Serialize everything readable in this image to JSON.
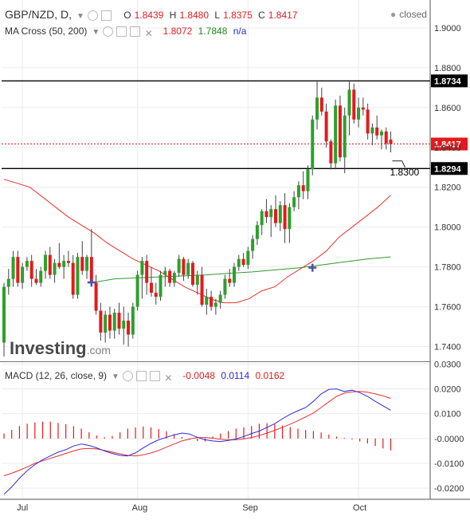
{
  "header": {
    "symbol": "GBP/NZD, D,",
    "open_label": "O",
    "open": "1.8439",
    "high_label": "H",
    "high": "1.8480",
    "low_label": "L",
    "low": "1.8375",
    "close_label": "C",
    "close": "1.8417",
    "status": "closed"
  },
  "ma_legend": {
    "label": "MA Cross (50, 200)",
    "ma50": "1.8072",
    "ma200": "1.7848",
    "extra": "n/a"
  },
  "macd_legend": {
    "label": "MACD (12, 26, close, 9)",
    "hist": "-0.0048",
    "macd": "0.0114",
    "signal": "0.0162"
  },
  "watermark": {
    "brand": "Investing",
    "suffix": ".com"
  },
  "colors": {
    "up": "#2ca02c",
    "down": "#e31a1c",
    "ma50": "#e83030",
    "ma200": "#2e9a2e",
    "macd": "#2b2bd6",
    "signal": "#e83030",
    "hist": "#e31a1c",
    "resistance": "#000000",
    "price_line": "#e31a1c",
    "cross_marker": "#5050b0"
  },
  "chart_data": [
    {
      "type": "candlestick",
      "y_ticks": [
        "1.9000",
        "1.8800",
        "1.8600",
        "1.8400",
        "1.8200",
        "1.8000",
        "1.7800",
        "1.7600",
        "1.7400"
      ],
      "x_ticks": [
        "Jul",
        "Aug",
        "Sep",
        "Oct"
      ],
      "ylim": [
        1.733,
        1.914
      ],
      "levels": [
        {
          "label": "1.8734",
          "value": 1.8734,
          "color": "#000000"
        },
        {
          "label": "1.8294",
          "value": 1.8294,
          "color": "#000000"
        },
        {
          "label": "1.8417",
          "value": 1.8417,
          "color": "#e31a1c"
        }
      ],
      "annotation": {
        "text": "1.8300",
        "value": 1.83
      },
      "candles": [
        {
          "o": 1.742,
          "h": 1.772,
          "l": 1.735,
          "c": 1.77
        },
        {
          "o": 1.77,
          "h": 1.779,
          "l": 1.766,
          "c": 1.774
        },
        {
          "o": 1.774,
          "h": 1.788,
          "l": 1.77,
          "c": 1.785
        },
        {
          "o": 1.785,
          "h": 1.788,
          "l": 1.77,
          "c": 1.772
        },
        {
          "o": 1.772,
          "h": 1.782,
          "l": 1.769,
          "c": 1.78
        },
        {
          "o": 1.78,
          "h": 1.785,
          "l": 1.778,
          "c": 1.783
        },
        {
          "o": 1.783,
          "h": 1.786,
          "l": 1.77,
          "c": 1.774
        },
        {
          "o": 1.774,
          "h": 1.779,
          "l": 1.771,
          "c": 1.772
        },
        {
          "o": 1.772,
          "h": 1.78,
          "l": 1.77,
          "c": 1.778
        },
        {
          "o": 1.778,
          "h": 1.788,
          "l": 1.774,
          "c": 1.786
        },
        {
          "o": 1.786,
          "h": 1.79,
          "l": 1.774,
          "c": 1.776
        },
        {
          "o": 1.776,
          "h": 1.784,
          "l": 1.772,
          "c": 1.782
        },
        {
          "o": 1.782,
          "h": 1.792,
          "l": 1.779,
          "c": 1.78
        },
        {
          "o": 1.78,
          "h": 1.786,
          "l": 1.774,
          "c": 1.783
        },
        {
          "o": 1.783,
          "h": 1.788,
          "l": 1.78,
          "c": 1.782
        },
        {
          "o": 1.782,
          "h": 1.786,
          "l": 1.764,
          "c": 1.766
        },
        {
          "o": 1.766,
          "h": 1.787,
          "l": 1.764,
          "c": 1.785
        },
        {
          "o": 1.785,
          "h": 1.793,
          "l": 1.776,
          "c": 1.778
        },
        {
          "o": 1.778,
          "h": 1.786,
          "l": 1.774,
          "c": 1.785
        },
        {
          "o": 1.785,
          "h": 1.799,
          "l": 1.77,
          "c": 1.772
        },
        {
          "o": 1.772,
          "h": 1.776,
          "l": 1.756,
          "c": 1.758
        },
        {
          "o": 1.758,
          "h": 1.762,
          "l": 1.743,
          "c": 1.747
        },
        {
          "o": 1.747,
          "h": 1.758,
          "l": 1.742,
          "c": 1.756
        },
        {
          "o": 1.756,
          "h": 1.76,
          "l": 1.744,
          "c": 1.748
        },
        {
          "o": 1.748,
          "h": 1.759,
          "l": 1.744,
          "c": 1.757
        },
        {
          "o": 1.757,
          "h": 1.762,
          "l": 1.746,
          "c": 1.749
        },
        {
          "o": 1.749,
          "h": 1.76,
          "l": 1.741,
          "c": 1.753
        },
        {
          "o": 1.753,
          "h": 1.757,
          "l": 1.74,
          "c": 1.746
        },
        {
          "o": 1.746,
          "h": 1.762,
          "l": 1.744,
          "c": 1.76
        },
        {
          "o": 1.76,
          "h": 1.778,
          "l": 1.758,
          "c": 1.776
        },
        {
          "o": 1.776,
          "h": 1.785,
          "l": 1.764,
          "c": 1.783
        },
        {
          "o": 1.783,
          "h": 1.786,
          "l": 1.766,
          "c": 1.772
        },
        {
          "o": 1.772,
          "h": 1.78,
          "l": 1.765,
          "c": 1.767
        },
        {
          "o": 1.767,
          "h": 1.772,
          "l": 1.761,
          "c": 1.765
        },
        {
          "o": 1.765,
          "h": 1.778,
          "l": 1.763,
          "c": 1.776
        },
        {
          "o": 1.776,
          "h": 1.78,
          "l": 1.77,
          "c": 1.778
        },
        {
          "o": 1.778,
          "h": 1.779,
          "l": 1.77,
          "c": 1.772
        },
        {
          "o": 1.772,
          "h": 1.778,
          "l": 1.77,
          "c": 1.777
        },
        {
          "o": 1.777,
          "h": 1.786,
          "l": 1.775,
          "c": 1.784
        },
        {
          "o": 1.784,
          "h": 1.785,
          "l": 1.773,
          "c": 1.776
        },
        {
          "o": 1.776,
          "h": 1.784,
          "l": 1.774,
          "c": 1.782
        },
        {
          "o": 1.782,
          "h": 1.783,
          "l": 1.77,
          "c": 1.771
        },
        {
          "o": 1.771,
          "h": 1.778,
          "l": 1.766,
          "c": 1.776
        },
        {
          "o": 1.776,
          "h": 1.78,
          "l": 1.76,
          "c": 1.761
        },
        {
          "o": 1.761,
          "h": 1.769,
          "l": 1.756,
          "c": 1.765
        },
        {
          "o": 1.765,
          "h": 1.768,
          "l": 1.758,
          "c": 1.76
        },
        {
          "o": 1.76,
          "h": 1.764,
          "l": 1.756,
          "c": 1.762
        },
        {
          "o": 1.762,
          "h": 1.768,
          "l": 1.759,
          "c": 1.766
        },
        {
          "o": 1.766,
          "h": 1.776,
          "l": 1.764,
          "c": 1.774
        },
        {
          "o": 1.774,
          "h": 1.779,
          "l": 1.77,
          "c": 1.772
        },
        {
          "o": 1.772,
          "h": 1.782,
          "l": 1.77,
          "c": 1.78
        },
        {
          "o": 1.78,
          "h": 1.786,
          "l": 1.778,
          "c": 1.784
        },
        {
          "o": 1.784,
          "h": 1.787,
          "l": 1.78,
          "c": 1.781
        },
        {
          "o": 1.781,
          "h": 1.79,
          "l": 1.779,
          "c": 1.788
        },
        {
          "o": 1.788,
          "h": 1.796,
          "l": 1.784,
          "c": 1.794
        },
        {
          "o": 1.794,
          "h": 1.803,
          "l": 1.791,
          "c": 1.801
        },
        {
          "o": 1.801,
          "h": 1.809,
          "l": 1.796,
          "c": 1.808
        },
        {
          "o": 1.808,
          "h": 1.814,
          "l": 1.802,
          "c": 1.805
        },
        {
          "o": 1.805,
          "h": 1.811,
          "l": 1.795,
          "c": 1.809
        },
        {
          "o": 1.809,
          "h": 1.816,
          "l": 1.8,
          "c": 1.802
        },
        {
          "o": 1.802,
          "h": 1.813,
          "l": 1.798,
          "c": 1.811
        },
        {
          "o": 1.811,
          "h": 1.817,
          "l": 1.792,
          "c": 1.799
        },
        {
          "o": 1.799,
          "h": 1.812,
          "l": 1.792,
          "c": 1.81
        },
        {
          "o": 1.81,
          "h": 1.818,
          "l": 1.808,
          "c": 1.815
        },
        {
          "o": 1.815,
          "h": 1.823,
          "l": 1.809,
          "c": 1.821
        },
        {
          "o": 1.821,
          "h": 1.828,
          "l": 1.814,
          "c": 1.818
        },
        {
          "o": 1.818,
          "h": 1.831,
          "l": 1.814,
          "c": 1.829
        },
        {
          "o": 1.829,
          "h": 1.856,
          "l": 1.826,
          "c": 1.854
        },
        {
          "o": 1.854,
          "h": 1.873,
          "l": 1.849,
          "c": 1.865
        },
        {
          "o": 1.865,
          "h": 1.87,
          "l": 1.856,
          "c": 1.858
        },
        {
          "o": 1.858,
          "h": 1.862,
          "l": 1.84,
          "c": 1.843
        },
        {
          "o": 1.843,
          "h": 1.844,
          "l": 1.829,
          "c": 1.832
        },
        {
          "o": 1.832,
          "h": 1.864,
          "l": 1.829,
          "c": 1.861
        },
        {
          "o": 1.861,
          "h": 1.866,
          "l": 1.833,
          "c": 1.835
        },
        {
          "o": 1.835,
          "h": 1.86,
          "l": 1.827,
          "c": 1.856
        },
        {
          "o": 1.856,
          "h": 1.873,
          "l": 1.846,
          "c": 1.869
        },
        {
          "o": 1.869,
          "h": 1.872,
          "l": 1.852,
          "c": 1.854
        },
        {
          "o": 1.854,
          "h": 1.865,
          "l": 1.85,
          "c": 1.86
        },
        {
          "o": 1.86,
          "h": 1.865,
          "l": 1.856,
          "c": 1.859
        },
        {
          "o": 1.859,
          "h": 1.862,
          "l": 1.844,
          "c": 1.847
        },
        {
          "o": 1.847,
          "h": 1.852,
          "l": 1.841,
          "c": 1.85
        },
        {
          "o": 1.85,
          "h": 1.856,
          "l": 1.844,
          "c": 1.846
        },
        {
          "o": 1.846,
          "h": 1.849,
          "l": 1.839,
          "c": 1.848
        },
        {
          "o": 1.848,
          "h": 1.85,
          "l": 1.839,
          "c": 1.842
        },
        {
          "o": 1.8439,
          "h": 1.848,
          "l": 1.8375,
          "c": 1.8417
        }
      ],
      "ma50": [
        1.824,
        1.822,
        1.82,
        1.815,
        1.81,
        1.805,
        1.801,
        1.797,
        1.792,
        1.788,
        1.784,
        1.781,
        1.778,
        1.774,
        1.77,
        1.767,
        1.764,
        1.762,
        1.762,
        1.764,
        1.768,
        1.77,
        1.775,
        1.779,
        1.783,
        1.788,
        1.795,
        1.8,
        1.805,
        1.81,
        1.816
      ],
      "ma200": [
        1.772,
        1.774,
        1.7745,
        1.775,
        1.7755,
        1.776,
        1.7768,
        1.7775,
        1.7785,
        1.7795,
        1.781,
        1.7825,
        1.784,
        1.785
      ],
      "cross_markers": [
        {
          "index": 19,
          "value": 1.7722
        },
        {
          "index": 67,
          "value": 1.7796
        }
      ]
    },
    {
      "type": "macd",
      "y_ticks": [
        "0.0300",
        "0.0200",
        "0.0100",
        "-0.0000",
        "-0.0100",
        "-0.0200"
      ],
      "ylim": [
        -0.0245,
        0.0305
      ],
      "macd": [
        -0.0225,
        -0.0195,
        -0.016,
        -0.013,
        -0.0105,
        -0.0085,
        -0.007,
        -0.0055,
        -0.0045,
        -0.003,
        -0.0022,
        -0.0028,
        -0.0038,
        -0.005,
        -0.006,
        -0.0068,
        -0.007,
        -0.0058,
        -0.0038,
        -0.002,
        -0.0005,
        0.0005,
        0.0015,
        0.0022,
        0.0018,
        0.0005,
        -0.0005,
        -0.001,
        -0.0012,
        -0.0008,
        -0.0002,
        0.0008,
        0.002,
        0.003,
        0.0045,
        0.006,
        0.008,
        0.0098,
        0.0112,
        0.0125,
        0.015,
        0.018,
        0.0198,
        0.02,
        0.019,
        0.0195,
        0.0185,
        0.017,
        0.015,
        0.0132,
        0.0114
      ],
      "signal": [
        -0.015,
        -0.014,
        -0.0128,
        -0.0115,
        -0.01,
        -0.009,
        -0.008,
        -0.007,
        -0.006,
        -0.005,
        -0.0042,
        -0.004,
        -0.0042,
        -0.0048,
        -0.0055,
        -0.0062,
        -0.0068,
        -0.007,
        -0.0066,
        -0.0058,
        -0.0048,
        -0.0035,
        -0.0022,
        -0.001,
        -0.0002,
        0.0004,
        0.0004,
        0.0001,
        -0.0003,
        -0.0005,
        -0.0005,
        -0.0002,
        0.0004,
        0.0012,
        0.0022,
        0.0033,
        0.0045,
        0.0058,
        0.0072,
        0.0087,
        0.0103,
        0.0125,
        0.0148,
        0.017,
        0.0183,
        0.0188,
        0.019,
        0.0187,
        0.018,
        0.0172,
        0.0162
      ],
      "hist": [
        0.002,
        0.0035,
        0.005,
        0.006,
        0.0065,
        0.0068,
        0.0068,
        0.0063,
        0.0058,
        0.005,
        0.004,
        0.0025,
        0.0012,
        0.0005,
        0.001,
        0.0025,
        0.004,
        0.0045,
        0.0048,
        0.0045,
        0.0038,
        0.003,
        0.0018,
        0.0006,
        -0.0005,
        -0.001,
        -0.0012,
        0.0008,
        0.002,
        0.003,
        0.004,
        0.0045,
        0.005,
        0.006,
        0.0062,
        0.0058,
        0.0052,
        0.0046,
        0.004,
        0.0034,
        0.003,
        0.0024,
        0.0016,
        0.0008,
        0.0003,
        -0.0004,
        -0.0012,
        -0.002,
        -0.003,
        -0.004,
        -0.0048
      ]
    }
  ]
}
